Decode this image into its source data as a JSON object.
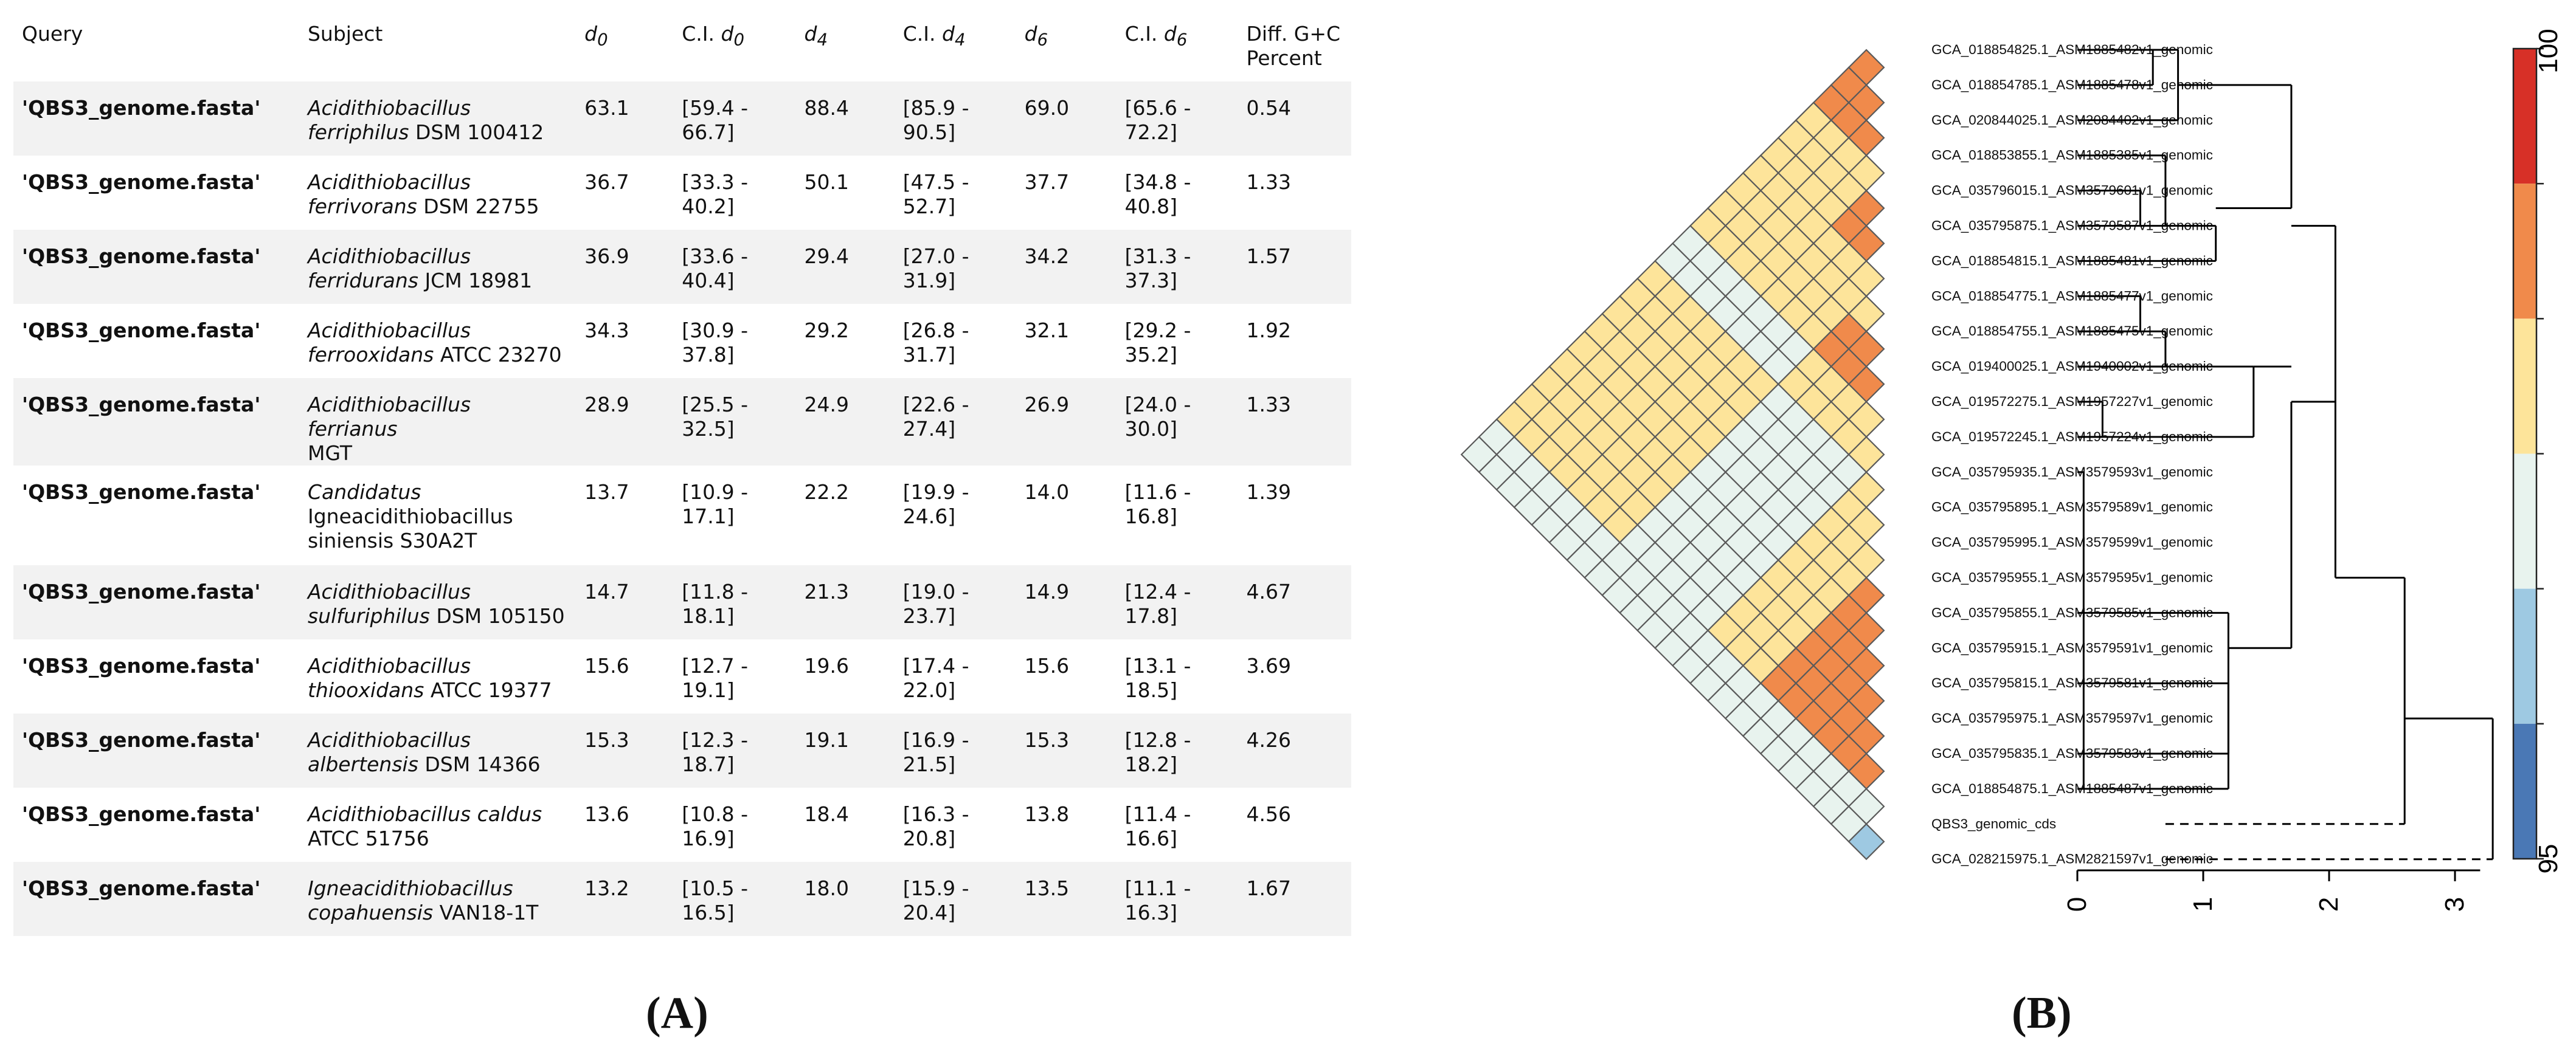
{
  "panel_a": {
    "caption": "(A)",
    "headers": {
      "query": "Query",
      "subject": "Subject",
      "d0_sym": "d",
      "d0_sub": "0",
      "ci_d0_prefix": "C.I. ",
      "ci_d0_sym": "d",
      "ci_d0_sub": "0",
      "d4_sym": "d",
      "d4_sub": "4",
      "ci_d4_prefix": "C.I. ",
      "ci_d4_sym": "d",
      "ci_d4_sub": "4",
      "d6_sym": "d",
      "d6_sub": "6",
      "ci_d6_prefix": "C.I. ",
      "ci_d6_sym": "d",
      "ci_d6_sub": "6",
      "gc_line1": "Diff. G+C",
      "gc_line2": "Percent"
    },
    "rows": [
      {
        "query": "'QBS3_genome.fasta'",
        "genus_l1": "Acidithiobacillus",
        "species_l2": "ferriphilus",
        "strain_l2": " DSM 100412",
        "d0": "63.1",
        "ci_d0_l1": "[59.4 -",
        "ci_d0_l2": "66.7]",
        "d4": "88.4",
        "ci_d4_l1": "[85.9 -",
        "ci_d4_l2": "90.5]",
        "d6": "69.0",
        "ci_d6_l1": "[65.6 -",
        "ci_d6_l2": "72.2]",
        "gc": "0.54"
      },
      {
        "query": "'QBS3_genome.fasta'",
        "genus_l1": "Acidithiobacillus",
        "species_l2": "ferrivorans",
        "strain_l2": " DSM 22755",
        "d0": "36.7",
        "ci_d0_l1": "[33.3 -",
        "ci_d0_l2": "40.2]",
        "d4": "50.1",
        "ci_d4_l1": "[47.5 -",
        "ci_d4_l2": "52.7]",
        "d6": "37.7",
        "ci_d6_l1": "[34.8 -",
        "ci_d6_l2": "40.8]",
        "gc": "1.33"
      },
      {
        "query": "'QBS3_genome.fasta'",
        "genus_l1": "Acidithiobacillus",
        "species_l2": "ferridurans",
        "strain_l2": " JCM 18981",
        "d0": "36.9",
        "ci_d0_l1": "[33.6 -",
        "ci_d0_l2": "40.4]",
        "d4": "29.4",
        "ci_d4_l1": "[27.0 -",
        "ci_d4_l2": "31.9]",
        "d6": "34.2",
        "ci_d6_l1": "[31.3 -",
        "ci_d6_l2": "37.3]",
        "gc": "1.57"
      },
      {
        "query": "'QBS3_genome.fasta'",
        "genus_l1": "Acidithiobacillus",
        "species_l2": "ferrooxidans",
        "strain_l2": " ATCC 23270",
        "d0": "34.3",
        "ci_d0_l1": "[30.9 -",
        "ci_d0_l2": "37.8]",
        "d4": "29.2",
        "ci_d4_l1": "[26.8 -",
        "ci_d4_l2": "31.7]",
        "d6": "32.1",
        "ci_d6_l1": "[29.2 -",
        "ci_d6_l2": "35.2]",
        "gc": "1.92"
      },
      {
        "query": "'QBS3_genome.fasta'",
        "genus_l1": "Acidithiobacillus ferrianus",
        "species_l2": "",
        "strain_l2": "MGT",
        "d0": "28.9",
        "ci_d0_l1": "[25.5 -",
        "ci_d0_l2": "32.5]",
        "d4": "24.9",
        "ci_d4_l1": "[22.6 -",
        "ci_d4_l2": "27.4]",
        "d6": "26.9",
        "ci_d6_l1": "[24.0 -",
        "ci_d6_l2": "30.0]",
        "gc": "1.33"
      },
      {
        "query": "'QBS3_genome.fasta'",
        "genus_l1": "Candidatus",
        "species_l2": "",
        "strain_l2": "Igneacidithiobacillus",
        "line3": "siniensis S30A2T",
        "d0": "13.7",
        "ci_d0_l1": "[10.9 -",
        "ci_d0_l2": "17.1]",
        "d4": "22.2",
        "ci_d4_l1": "[19.9 -",
        "ci_d4_l2": "24.6]",
        "d6": "14.0",
        "ci_d6_l1": "[11.6 -",
        "ci_d6_l2": "16.8]",
        "gc": "1.39"
      },
      {
        "query": "'QBS3_genome.fasta'",
        "genus_l1": "Acidithiobacillus",
        "species_l2": "sulfuriphilus",
        "strain_l2": " DSM 105150",
        "d0": "14.7",
        "ci_d0_l1": "[11.8 -",
        "ci_d0_l2": "18.1]",
        "d4": "21.3",
        "ci_d4_l1": "[19.0 -",
        "ci_d4_l2": "23.7]",
        "d6": "14.9",
        "ci_d6_l1": "[12.4 -",
        "ci_d6_l2": "17.8]",
        "gc": "4.67"
      },
      {
        "query": "'QBS3_genome.fasta'",
        "genus_l1": "Acidithiobacillus",
        "species_l2": "thiooxidans",
        "strain_l2": " ATCC 19377",
        "d0": "15.6",
        "ci_d0_l1": "[12.7 -",
        "ci_d0_l2": "19.1]",
        "d4": "19.6",
        "ci_d4_l1": "[17.4 -",
        "ci_d4_l2": "22.0]",
        "d6": "15.6",
        "ci_d6_l1": "[13.1 -",
        "ci_d6_l2": "18.5]",
        "gc": "3.69"
      },
      {
        "query": "'QBS3_genome.fasta'",
        "genus_l1": "Acidithiobacillus",
        "species_l2": "albertensis",
        "strain_l2": " DSM 14366",
        "d0": "15.3",
        "ci_d0_l1": "[12.3 -",
        "ci_d0_l2": "18.7]",
        "d4": "19.1",
        "ci_d4_l1": "[16.9 -",
        "ci_d4_l2": "21.5]",
        "d6": "15.3",
        "ci_d6_l1": "[12.8 -",
        "ci_d6_l2": "18.2]",
        "gc": "4.26"
      },
      {
        "query": "'QBS3_genome.fasta'",
        "genus_l1": "Acidithiobacillus caldus",
        "species_l2": "",
        "strain_l2": "ATCC 51756",
        "d0": "13.6",
        "ci_d0_l1": "[10.8 -",
        "ci_d0_l2": "16.9]",
        "d4": "18.4",
        "ci_d4_l1": "[16.3 -",
        "ci_d4_l2": "20.8]",
        "d6": "13.8",
        "ci_d6_l1": "[11.4 -",
        "ci_d6_l2": "16.6]",
        "gc": "4.56"
      },
      {
        "query": "'QBS3_genome.fasta'",
        "genus_l1": "Igneacidithiobacillus",
        "species_l2": "copahuensis",
        "strain_l2": " VAN18-1T",
        "d0": "13.2",
        "ci_d0_l1": "[10.5 -",
        "ci_d0_l2": "16.5]",
        "d4": "18.0",
        "ci_d4_l1": "[15.9 -",
        "ci_d4_l2": "20.4]",
        "d6": "13.5",
        "ci_d6_l1": "[11.1 -",
        "ci_d6_l2": "16.3]",
        "gc": "1.67"
      }
    ]
  },
  "panel_b": {
    "caption": "(B)",
    "genomes": [
      "GCA_018854825.1_ASM1885482v1_genomic",
      "GCA_018854785.1_ASM1885478v1_genomic",
      "GCA_020844025.1_ASM2084402v1_genomic",
      "GCA_018853855.1_ASM1885385v1_genomic",
      "GCA_035796015.1_ASM3579601v1_genomic",
      "GCA_035795875.1_ASM3579587v1_genomic",
      "GCA_018854815.1_ASM1885481v1_genomic",
      "GCA_018854775.1_ASM1885477v1_genomic",
      "GCA_018854755.1_ASM1885475v1_genomic",
      "GCA_019400025.1_ASM1940002v1_genomic",
      "GCA_019572275.1_ASM1957227v1_genomic",
      "GCA_019572245.1_ASM1957224v1_genomic",
      "GCA_035795935.1_ASM3579593v1_genomic",
      "GCA_035795895.1_ASM3579589v1_genomic",
      "GCA_035795995.1_ASM3579599v1_genomic",
      "GCA_035795955.1_ASM3579595v1_genomic",
      "GCA_035795855.1_ASM3579585v1_genomic",
      "GCA_035795915.1_ASM3579591v1_genomic",
      "GCA_035795815.1_ASM3579581v1_genomic",
      "GCA_035795975.1_ASM3579597v1_genomic",
      "GCA_035795835.1_ASM3579583v1_genomic",
      "GCA_018854875.1_ASM1885487v1_genomic",
      "QBS3_genomic_cds",
      "GCA_028215975.1_ASM2821597v1_genomic"
    ],
    "legend": {
      "max_label": "100",
      "min_label": "95",
      "colors": [
        "#d73027",
        "#f08a4b",
        "#fde49a",
        "#e8f3ee",
        "#9ec9e2",
        "#4a78b5"
      ]
    },
    "axis": {
      "ticks": [
        "0",
        "1",
        "2",
        "3"
      ],
      "range": [
        0,
        3.2
      ]
    },
    "cell_colors": {
      "orange": "#f08a4b",
      "yellow": "#fde49a",
      "pale": "#e8f3ee",
      "blue": "#9ec9e2"
    },
    "matrix_similarity_classes": [
      [
        "o"
      ],
      [
        "o",
        "o"
      ],
      [
        "o",
        "o",
        "o"
      ],
      [
        "y",
        "y",
        "y",
        "y"
      ],
      [
        "y",
        "y",
        "y",
        "y",
        "o"
      ],
      [
        "y",
        "y",
        "y",
        "y",
        "o",
        "o"
      ],
      [
        "y",
        "y",
        "y",
        "y",
        "y",
        "y",
        "y"
      ],
      [
        "y",
        "y",
        "y",
        "y",
        "y",
        "y",
        "y",
        "y"
      ],
      [
        "y",
        "y",
        "y",
        "y",
        "y",
        "y",
        "y",
        "o",
        "o"
      ],
      [
        "y",
        "y",
        "y",
        "y",
        "y",
        "y",
        "y",
        "o",
        "o",
        "o"
      ],
      [
        "p",
        "p",
        "p",
        "p",
        "p",
        "p",
        "p",
        "y",
        "y",
        "y",
        "y"
      ],
      [
        "p",
        "p",
        "p",
        "p",
        "p",
        "p",
        "p",
        "y",
        "y",
        "y",
        "y",
        "y"
      ],
      [
        "y",
        "y",
        "y",
        "y",
        "y",
        "y",
        "y",
        "p",
        "p",
        "p",
        "p",
        "p",
        "y"
      ],
      [
        "y",
        "y",
        "y",
        "y",
        "y",
        "y",
        "y",
        "p",
        "p",
        "p",
        "p",
        "p",
        "y",
        "y"
      ],
      [
        "y",
        "y",
        "y",
        "y",
        "y",
        "y",
        "y",
        "p",
        "p",
        "p",
        "p",
        "p",
        "y",
        "y",
        "y"
      ],
      [
        "y",
        "y",
        "y",
        "y",
        "y",
        "y",
        "y",
        "p",
        "p",
        "p",
        "p",
        "p",
        "y",
        "y",
        "y",
        "o"
      ],
      [
        "y",
        "y",
        "y",
        "y",
        "y",
        "y",
        "y",
        "p",
        "p",
        "p",
        "p",
        "p",
        "y",
        "y",
        "y",
        "o",
        "o"
      ],
      [
        "y",
        "y",
        "y",
        "y",
        "y",
        "y",
        "y",
        "p",
        "p",
        "p",
        "p",
        "p",
        "y",
        "y",
        "y",
        "o",
        "o",
        "o"
      ],
      [
        "y",
        "y",
        "y",
        "y",
        "y",
        "y",
        "y",
        "p",
        "p",
        "p",
        "p",
        "p",
        "y",
        "y",
        "y",
        "o",
        "o",
        "o",
        "o"
      ],
      [
        "y",
        "y",
        "y",
        "y",
        "y",
        "y",
        "y",
        "p",
        "p",
        "p",
        "p",
        "p",
        "y",
        "y",
        "y",
        "o",
        "o",
        "o",
        "o",
        "o"
      ],
      [
        "y",
        "y",
        "y",
        "y",
        "y",
        "y",
        "y",
        "p",
        "p",
        "p",
        "p",
        "p",
        "y",
        "y",
        "y",
        "o",
        "o",
        "o",
        "o",
        "o",
        "o"
      ],
      [
        "p",
        "p",
        "p",
        "p",
        "p",
        "p",
        "p",
        "p",
        "p",
        "p",
        "p",
        "p",
        "p",
        "p",
        "p",
        "p",
        "p",
        "p",
        "p",
        "p",
        "p",
        "p"
      ],
      [
        "p",
        "p",
        "p",
        "p",
        "p",
        "p",
        "p",
        "p",
        "p",
        "p",
        "p",
        "p",
        "p",
        "p",
        "p",
        "p",
        "p",
        "p",
        "p",
        "p",
        "p",
        "p",
        "b"
      ]
    ]
  }
}
